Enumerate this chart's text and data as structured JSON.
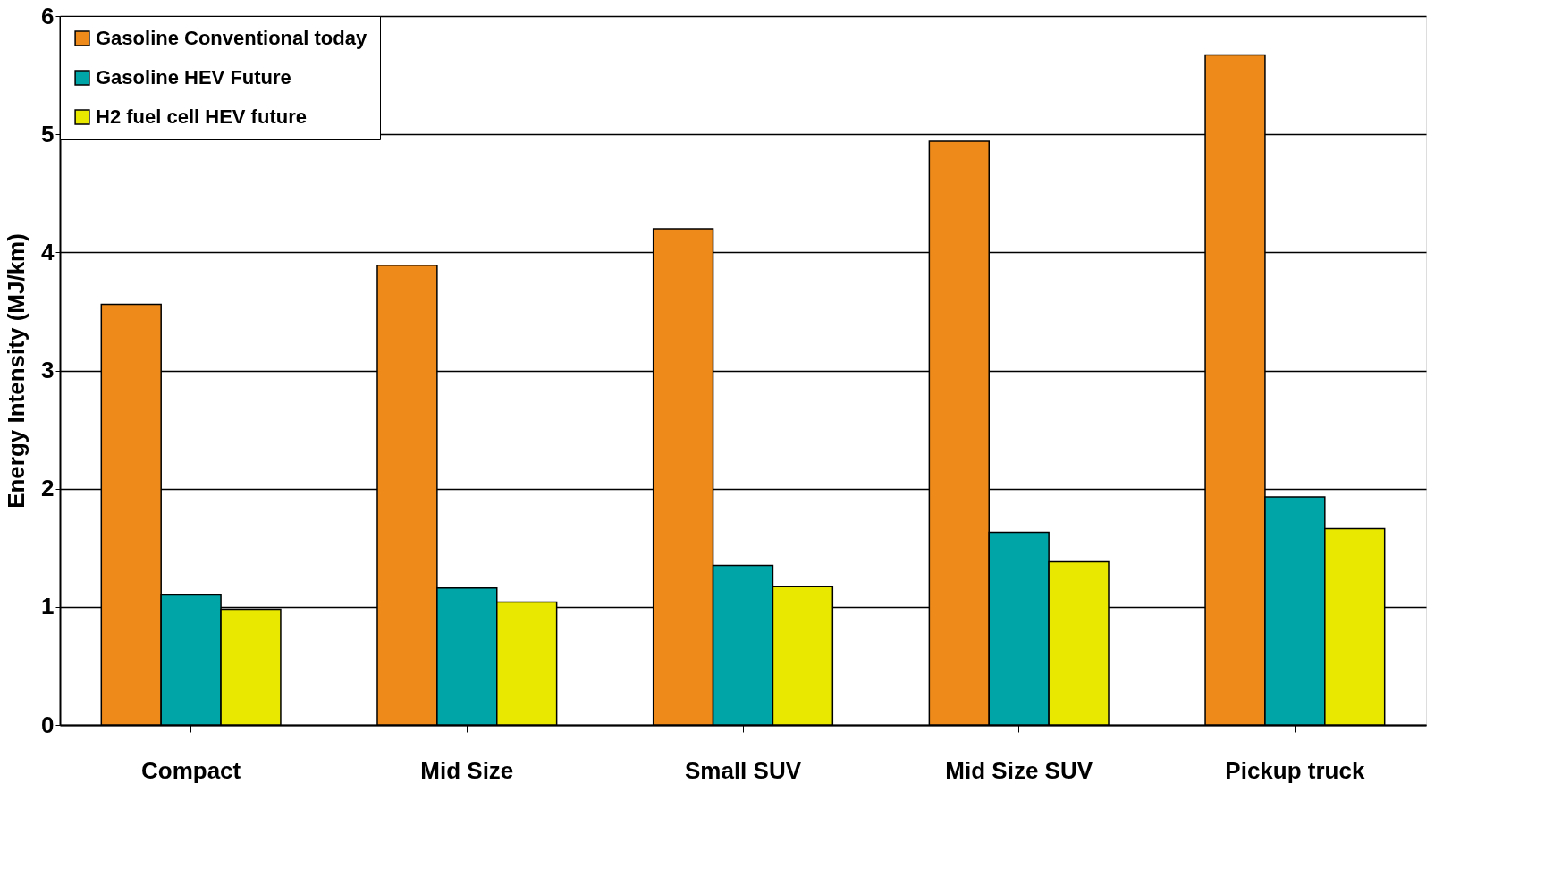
{
  "chart_data": {
    "type": "bar",
    "ylabel": "Energy Intensity (MJ/km)",
    "categories": [
      "Compact",
      "Mid Size",
      "Small SUV",
      "Mid Size SUV",
      "Pickup truck"
    ],
    "series": [
      {
        "name": "Gasoline Conventional today",
        "color": "#ee8a1a",
        "values": [
          3.56,
          3.89,
          4.2,
          4.94,
          5.67
        ]
      },
      {
        "name": "Gasoline HEV Future",
        "color": "#00a5a8",
        "values": [
          1.1,
          1.16,
          1.35,
          1.63,
          1.93
        ]
      },
      {
        "name": "H2 fuel cell HEV future",
        "color": "#e8e800",
        "values": [
          0.98,
          1.04,
          1.17,
          1.38,
          1.66
        ]
      }
    ],
    "ylim": [
      0,
      6
    ],
    "yticks": [
      0,
      1,
      2,
      3,
      4,
      5,
      6
    ],
    "grid": "y",
    "legend": "top left"
  }
}
